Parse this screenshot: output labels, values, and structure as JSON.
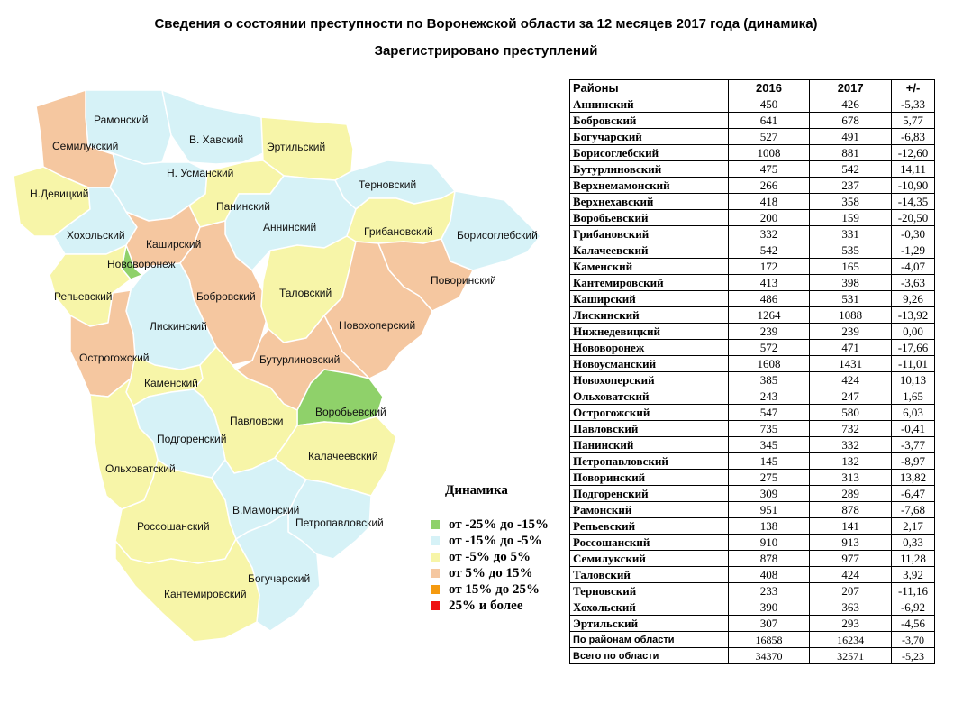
{
  "title": "Сведения о состоянии преступности по Воронежской области  за 12 месяцев 2017 года (динамика)",
  "subtitle": "Зарегистрировано преступлений",
  "legend": {
    "title": "Динамика",
    "items": [
      {
        "label": "от -25% до -15%",
        "color": "#8fd16a"
      },
      {
        "label": "от -15% до -5%",
        "color": "#d6f2f7"
      },
      {
        "label": "от -5% до 5%",
        "color": "#f7f5a8"
      },
      {
        "label": "от 5% до 15%",
        "color": "#f5c7a0"
      },
      {
        "label": "от 15% до 25%",
        "color": "#f59a0f"
      },
      {
        "label": "25% и более",
        "color": "#ee1111"
      }
    ]
  },
  "map": {
    "regions": [
      {
        "name": "Рамонский",
        "color": "#d6f2f7"
      },
      {
        "name": "Семилукский",
        "color": "#f5c7a0"
      },
      {
        "name": "В. Хавский",
        "color": "#d6f2f7"
      },
      {
        "name": "Эртильский",
        "color": "#f7f5a8"
      },
      {
        "name": "Н. Усманский",
        "color": "#d6f2f7"
      },
      {
        "name": "Н.Девицкий",
        "color": "#f7f5a8"
      },
      {
        "name": "Терновский",
        "color": "#d6f2f7"
      },
      {
        "name": "Панинский",
        "color": "#f7f5a8"
      },
      {
        "name": "Аннинский",
        "color": "#d6f2f7"
      },
      {
        "name": "Хохольский",
        "color": "#d6f2f7"
      },
      {
        "name": "Грибановский",
        "color": "#f7f5a8"
      },
      {
        "name": "Борисоглебский",
        "color": "#d6f2f7"
      },
      {
        "name": "Каширский",
        "color": "#f5c7a0"
      },
      {
        "name": "Нововоронеж",
        "color": "#8fd16a"
      },
      {
        "name": "Поворинский",
        "color": "#f5c7a0"
      },
      {
        "name": "Репьевский",
        "color": "#f7f5a8"
      },
      {
        "name": "Бобровский",
        "color": "#f5c7a0"
      },
      {
        "name": "Таловский",
        "color": "#f7f5a8"
      },
      {
        "name": "Лискинский",
        "color": "#d6f2f7"
      },
      {
        "name": "Новохоперский",
        "color": "#f5c7a0"
      },
      {
        "name": "Острогожский",
        "color": "#f5c7a0"
      },
      {
        "name": "Бутурлиновский",
        "color": "#f5c7a0"
      },
      {
        "name": "Каменский",
        "color": "#f7f5a8"
      },
      {
        "name": "Воробьевский",
        "color": "#8fd16a"
      },
      {
        "name": "Павловски",
        "color": "#f7f5a8"
      },
      {
        "name": "Подгоренский",
        "color": "#d6f2f7"
      },
      {
        "name": "Калачеевский",
        "color": "#f7f5a8"
      },
      {
        "name": "Ольховатский",
        "color": "#f7f5a8"
      },
      {
        "name": "В.Мамонский",
        "color": "#d6f2f7"
      },
      {
        "name": "Петропавловский",
        "color": "#d6f2f7"
      },
      {
        "name": "Россошанский",
        "color": "#f7f5a8"
      },
      {
        "name": "Богучарский",
        "color": "#d6f2f7"
      },
      {
        "name": "Кантемировский",
        "color": "#f7f5a8"
      }
    ]
  },
  "table": {
    "headers": [
      "Районы",
      "2016",
      "2017",
      "+/-"
    ],
    "rows": [
      [
        "Аннинский",
        "450",
        "426",
        "-5,33"
      ],
      [
        "Бобровский",
        "641",
        "678",
        "5,77"
      ],
      [
        "Богучарский",
        "527",
        "491",
        "-6,83"
      ],
      [
        "Борисоглебский",
        "1008",
        "881",
        "-12,60"
      ],
      [
        "Бутурлиновский",
        "475",
        "542",
        "14,11"
      ],
      [
        "Верхнемамонский",
        "266",
        "237",
        "-10,90"
      ],
      [
        "Верхнехавский",
        "418",
        "358",
        "-14,35"
      ],
      [
        "Воробьевский",
        "200",
        "159",
        "-20,50"
      ],
      [
        "Грибановский",
        "332",
        "331",
        "-0,30"
      ],
      [
        "Калачеевский",
        "542",
        "535",
        "-1,29"
      ],
      [
        "Каменский",
        "172",
        "165",
        "-4,07"
      ],
      [
        "Кантемировский",
        "413",
        "398",
        "-3,63"
      ],
      [
        "Каширский",
        "486",
        "531",
        "9,26"
      ],
      [
        "Лискинский",
        "1264",
        "1088",
        "-13,92"
      ],
      [
        "Нижнедевицкий",
        "239",
        "239",
        "0,00"
      ],
      [
        "Нововоронеж",
        "572",
        "471",
        "-17,66"
      ],
      [
        "Новоусманский",
        "1608",
        "1431",
        "-11,01"
      ],
      [
        "Новохоперский",
        "385",
        "424",
        "10,13"
      ],
      [
        "Ольховатский",
        "243",
        "247",
        "1,65"
      ],
      [
        "Острогожский",
        "547",
        "580",
        "6,03"
      ],
      [
        "Павловский",
        "735",
        "732",
        "-0,41"
      ],
      [
        "Панинский",
        "345",
        "332",
        "-3,77"
      ],
      [
        "Петропавловский",
        "145",
        "132",
        "-8,97"
      ],
      [
        "Поворинский",
        "275",
        "313",
        "13,82"
      ],
      [
        "Подгоренский",
        "309",
        "289",
        "-6,47"
      ],
      [
        "Рамонский",
        "951",
        "878",
        "-7,68"
      ],
      [
        "Репьевский",
        "138",
        "141",
        "2,17"
      ],
      [
        "Россошанский",
        "910",
        "913",
        "0,33"
      ],
      [
        "Семилукский",
        "878",
        "977",
        "11,28"
      ],
      [
        "Таловский",
        "408",
        "424",
        "3,92"
      ],
      [
        "Терновский",
        "233",
        "207",
        "-11,16"
      ],
      [
        "Хохольский",
        "390",
        "363",
        "-6,92"
      ],
      [
        "Эртильский",
        "307",
        "293",
        "-4,56"
      ]
    ],
    "totals": [
      [
        "По районам области",
        "16858",
        "16234",
        "-3,70"
      ],
      [
        "Всего по области",
        "34370",
        "32571",
        "-5,23"
      ]
    ]
  }
}
